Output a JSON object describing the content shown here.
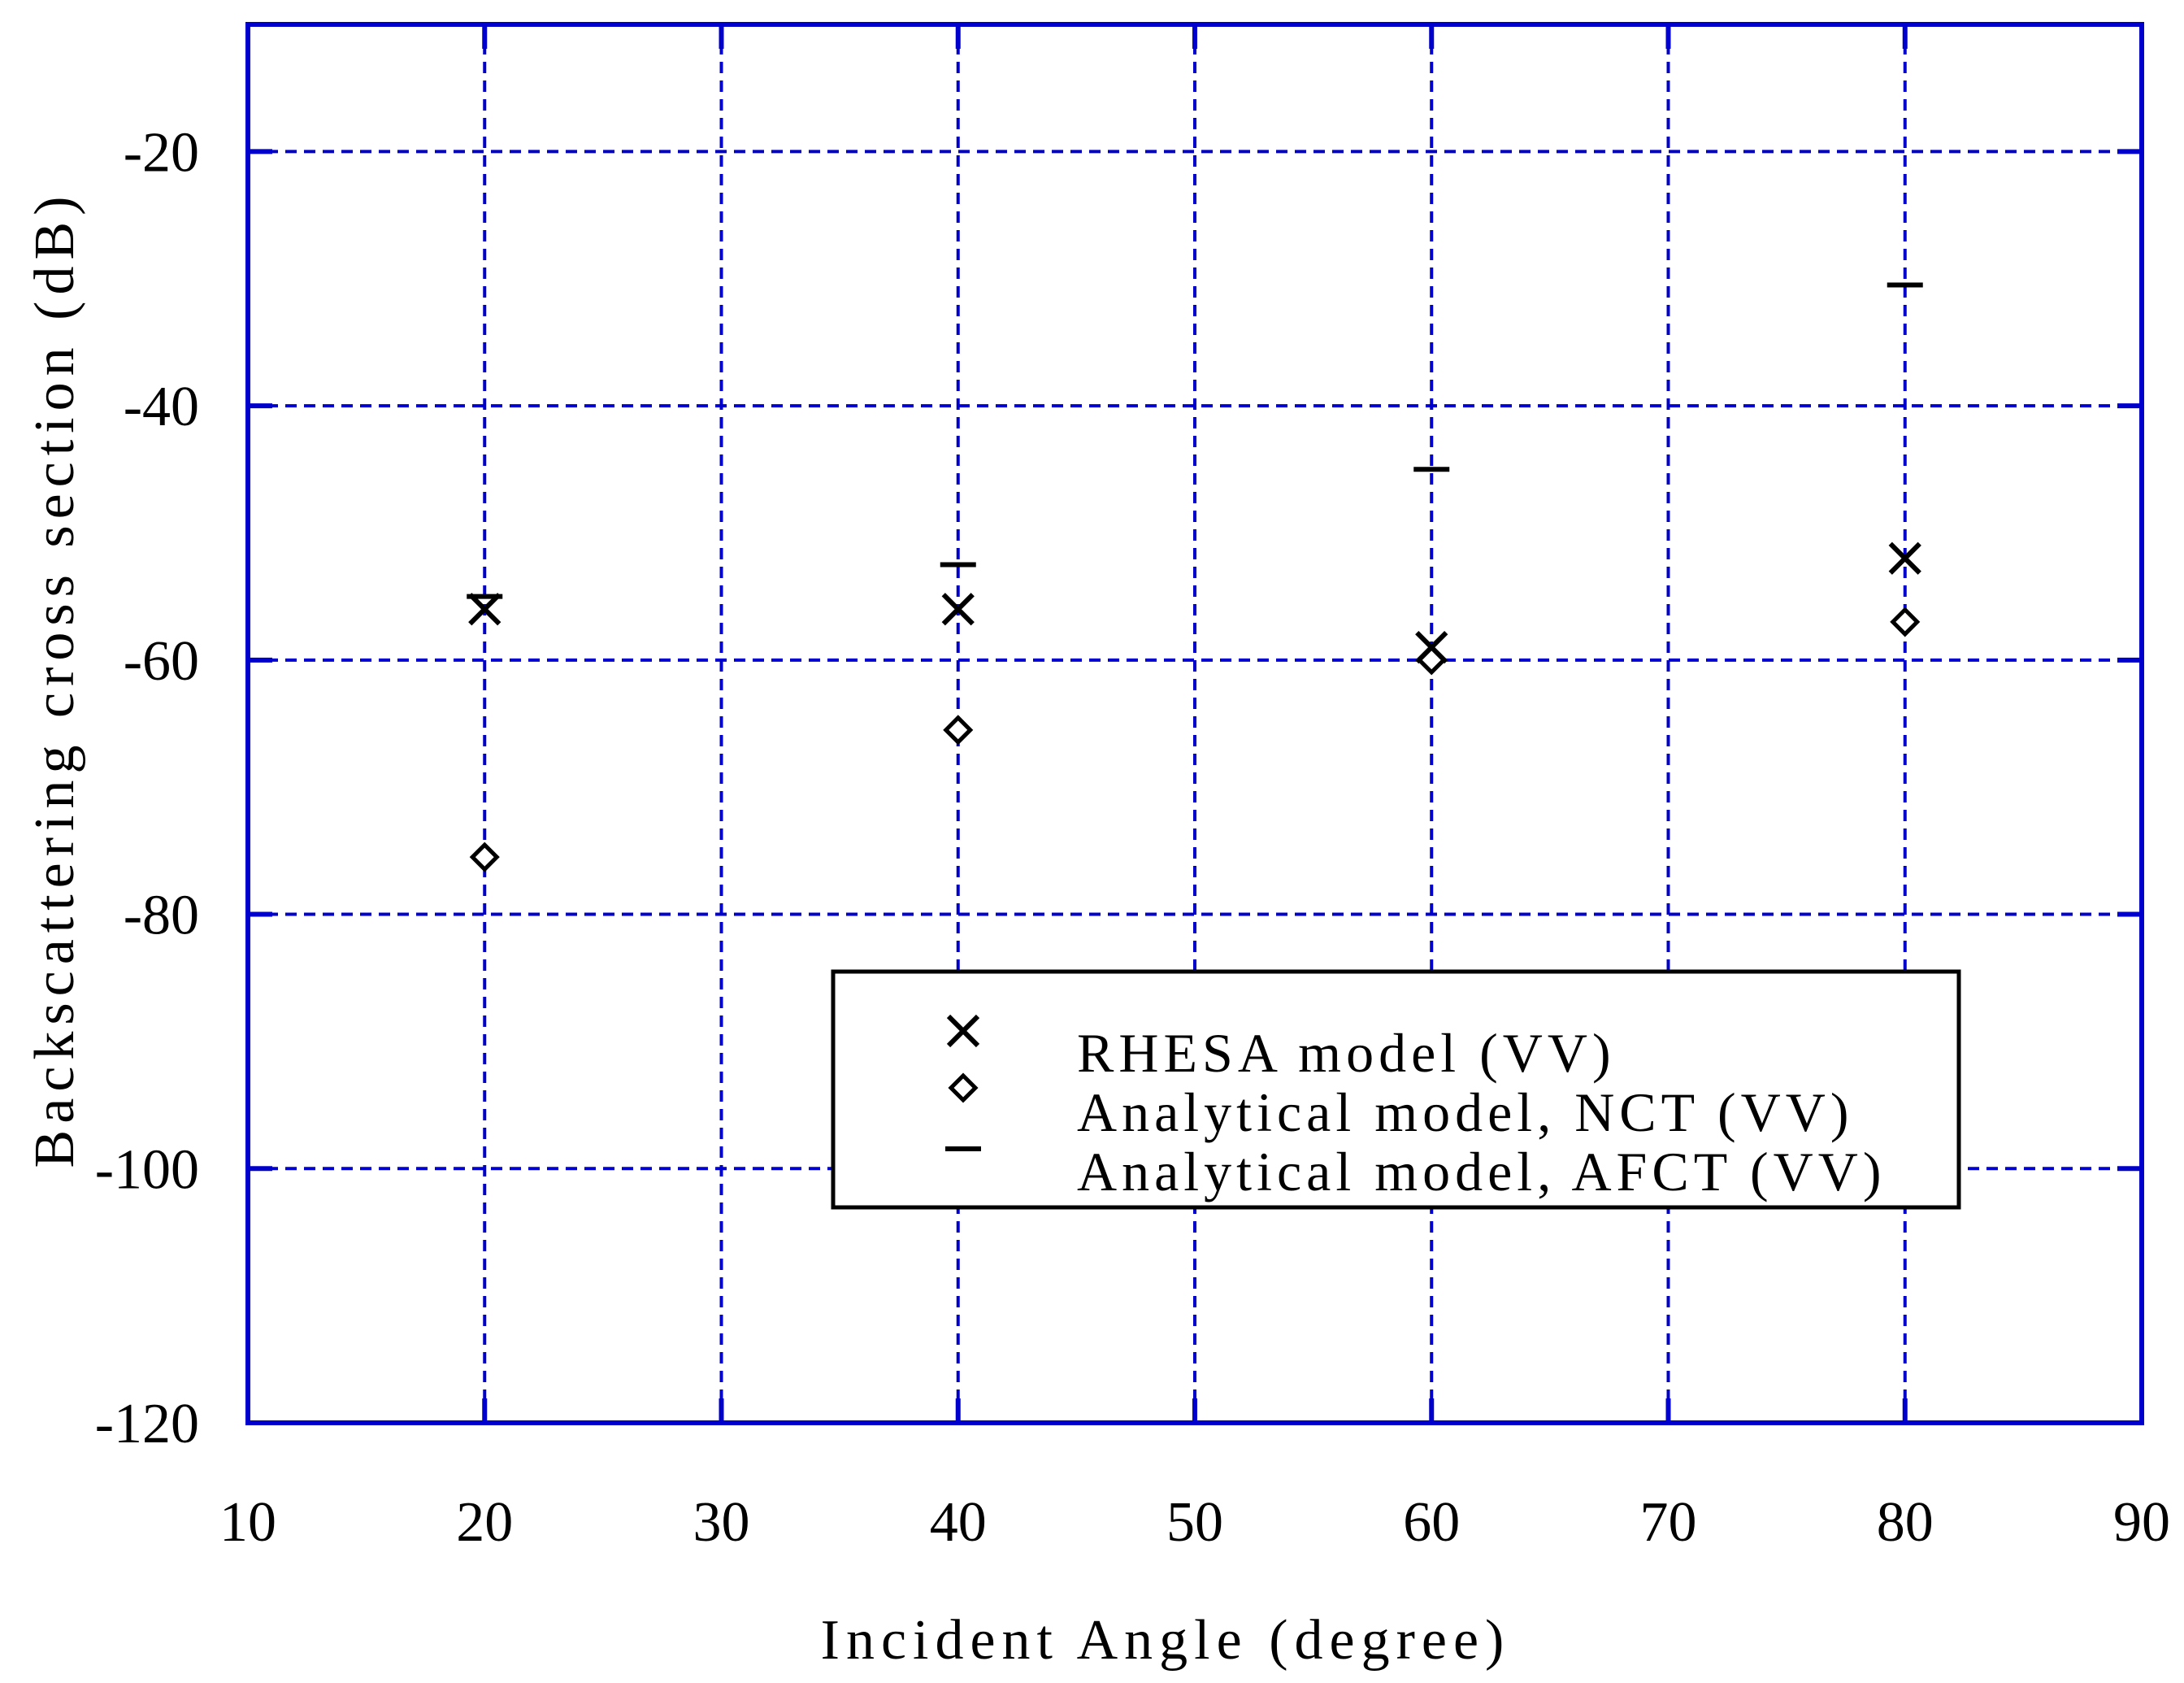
{
  "chart_data": {
    "type": "scatter",
    "xlabel": "Incident Angle (degree)",
    "ylabel": "Backscattering cross section (dB)",
    "xlim": [
      10,
      90
    ],
    "ylim": [
      -120,
      -10
    ],
    "x_ticks": [
      10,
      20,
      30,
      40,
      50,
      60,
      70,
      80,
      90
    ],
    "y_ticks": [
      -20,
      -40,
      -60,
      -80,
      -100,
      -120
    ],
    "x_tick_labels": [
      "10",
      "20",
      "30",
      "40",
      "50",
      "60",
      "70",
      "80",
      "90"
    ],
    "y_tick_labels": [
      "-20",
      "-40",
      "-60",
      "-80",
      "-100",
      "-120"
    ],
    "grid": true,
    "grid_color": "#0000cc",
    "legend_position": "lower-right",
    "series": [
      {
        "name": "RHESA model (VV)",
        "marker": "x",
        "x": [
          20,
          40,
          60,
          80
        ],
        "y": [
          -56,
          -56,
          -59,
          -52
        ]
      },
      {
        "name": "Analytical model, NCT (VV)",
        "marker": "diamond",
        "x": [
          20,
          40,
          60,
          80
        ],
        "y": [
          -75.5,
          -65.5,
          -60,
          -57
        ]
      },
      {
        "name": "Analytical model, AFCT (VV)",
        "marker": "dash",
        "x": [
          20,
          40,
          60,
          80
        ],
        "y": [
          -55,
          -52.5,
          -45,
          -30.5
        ]
      }
    ]
  }
}
